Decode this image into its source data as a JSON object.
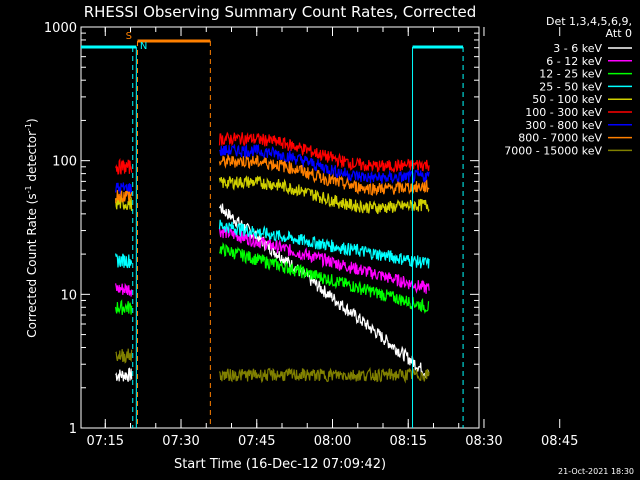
{
  "chart_data": {
    "type": "line",
    "title": "RHESSI Observing Summary Count Rates, Corrected",
    "xlabel": "Start Time (16-Dec-12 07:09:42)",
    "ylabel_main": "Corrected Count Rate (s",
    "ylabel_sup1": "-1",
    "ylabel_mid": " detector",
    "ylabel_sup2": "-1",
    "ylabel_end": ")",
    "yscale": "log",
    "ylim": [
      1,
      1000
    ],
    "y_ticks": [
      "1",
      "10",
      "100",
      "1000"
    ],
    "x_ticks": [
      "07:15",
      "07:30",
      "07:45",
      "08:00",
      "08:15",
      "08:30",
      "08:45"
    ],
    "legend_header": [
      "Det 1,3,4,5,6,9,",
      "Att 0"
    ],
    "legend_position": "right",
    "footer_date": "21-Oct-2021 18:30",
    "markers": {
      "saa": "S",
      "night": "N"
    },
    "series": [
      {
        "name": "3 - 6 keV",
        "color": "#ffffff",
        "level_start": 2.5,
        "level_flare": 45,
        "level_end": 2.5
      },
      {
        "name": "6 - 12 keV",
        "color": "#ff00ff",
        "level_start": 11,
        "level_flare": 30,
        "level_end": 11
      },
      {
        "name": "12 - 25 keV",
        "color": "#00ff00",
        "level_start": 8,
        "level_flare": 22,
        "level_end": 8
      },
      {
        "name": "25 - 50 keV",
        "color": "#00ffff",
        "level_start": 18,
        "level_flare": 33,
        "level_end": 17
      },
      {
        "name": "50 - 100 keV",
        "color": "#d0d000",
        "level_start": 48,
        "level_flare": 68,
        "level_end": 44
      },
      {
        "name": "100 - 300 keV",
        "color": "#ff0000",
        "level_start": 90,
        "level_flare": 145,
        "level_end": 88
      },
      {
        "name": "300 - 800 keV",
        "color": "#0000ff",
        "level_start": 62,
        "level_flare": 118,
        "level_end": 72
      },
      {
        "name": "800 - 7000 keV",
        "color": "#ff8000",
        "level_start": 55,
        "level_flare": 98,
        "level_end": 60
      },
      {
        "name": "7000 - 15000 keV",
        "color": "#808000",
        "level_start": 3.5,
        "level_flare": 2.5,
        "level_end": 2.5
      }
    ]
  }
}
